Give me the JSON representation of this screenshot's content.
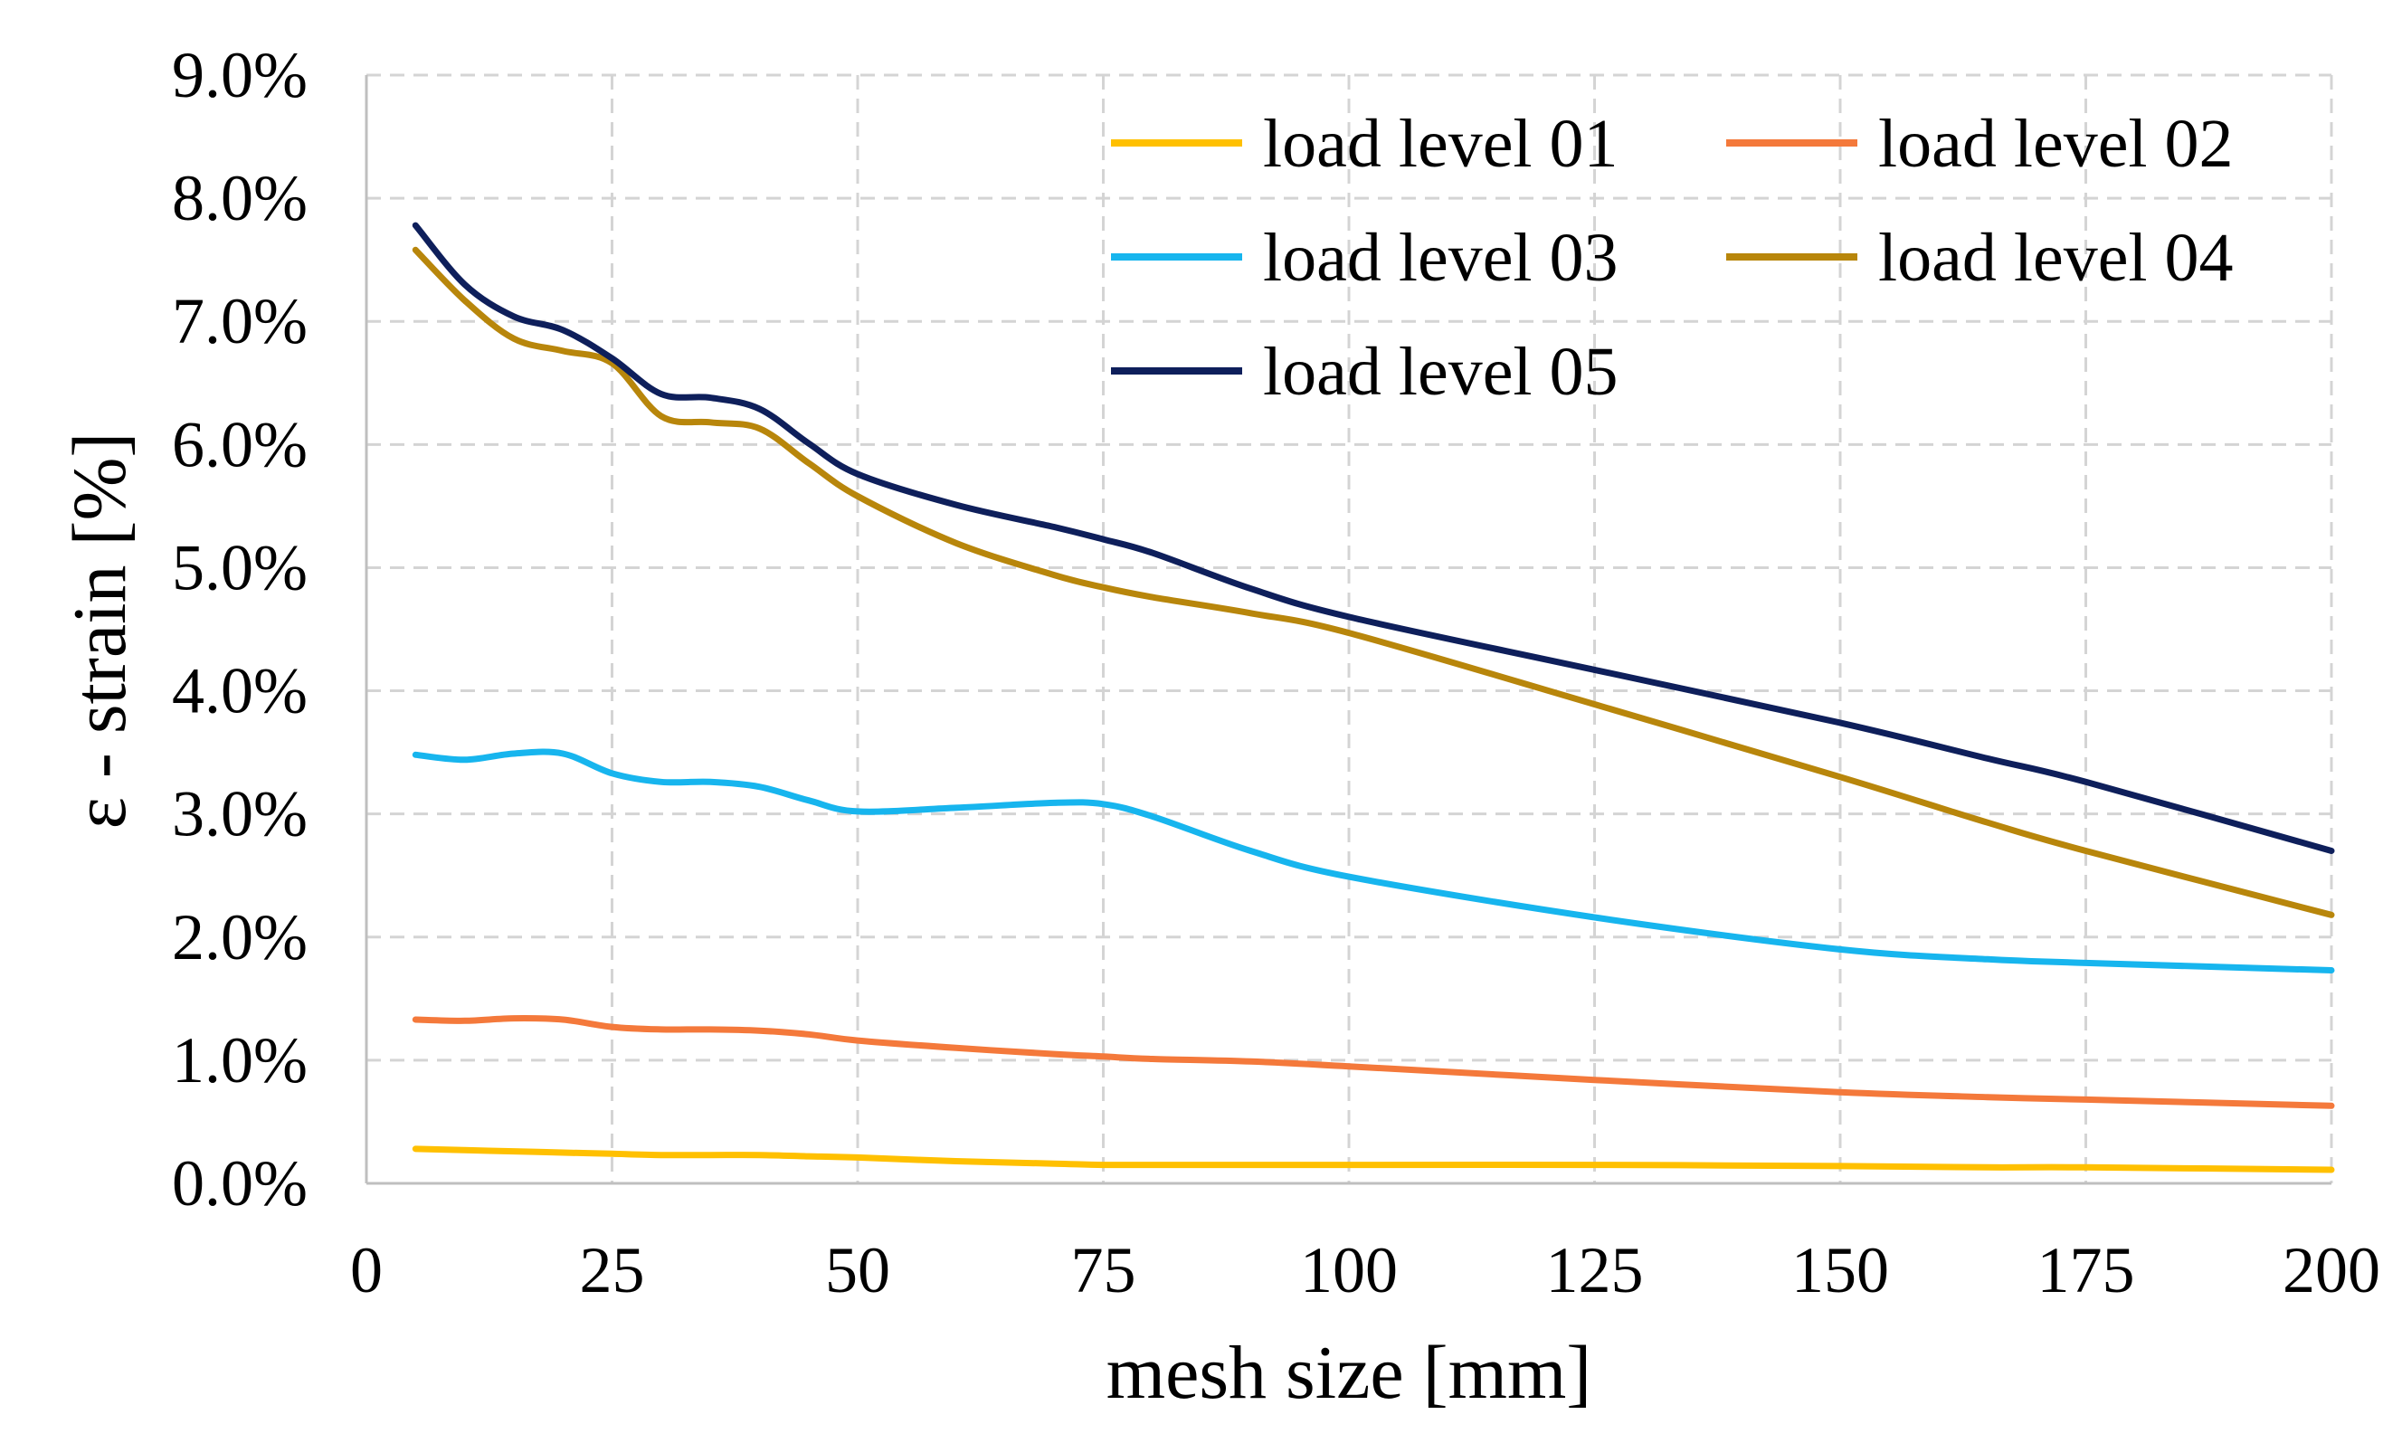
{
  "chart_data": {
    "type": "line",
    "title": "",
    "xlabel": "mesh size [mm]",
    "ylabel": "ε - strain [%]",
    "xlim": [
      0,
      200
    ],
    "ylim": [
      0,
      9
    ],
    "grid": true,
    "legend_position": "top-right",
    "x_ticks": [
      0,
      25,
      50,
      75,
      100,
      125,
      150,
      175,
      200
    ],
    "x_tick_labels": [
      "0",
      "25",
      "50",
      "75",
      "100",
      "125",
      "150",
      "175",
      "200"
    ],
    "y_ticks": [
      0,
      1,
      2,
      3,
      4,
      5,
      6,
      7,
      8,
      9
    ],
    "y_tick_labels": [
      "0.0%",
      "1.0%",
      "2.0%",
      "3.0%",
      "4.0%",
      "5.0%",
      "6.0%",
      "7.0%",
      "8.0%",
      "9.0%"
    ],
    "x": [
      5,
      10,
      15,
      20,
      25,
      30,
      35,
      40,
      45,
      50,
      60,
      70,
      75,
      80,
      90,
      100,
      125,
      150,
      165,
      175,
      200
    ],
    "series": [
      {
        "name": "load level 01",
        "color": "#FFC000",
        "values": [
          0.28,
          0.27,
          0.26,
          0.25,
          0.24,
          0.23,
          0.23,
          0.23,
          0.22,
          0.21,
          0.18,
          0.16,
          0.15,
          0.15,
          0.15,
          0.15,
          0.15,
          0.14,
          0.13,
          0.13,
          0.11
        ]
      },
      {
        "name": "load level 02",
        "color": "#F4793B",
        "values": [
          1.33,
          1.32,
          1.34,
          1.33,
          1.27,
          1.25,
          1.25,
          1.24,
          1.21,
          1.16,
          1.1,
          1.05,
          1.03,
          1.01,
          0.99,
          0.95,
          0.84,
          0.74,
          0.7,
          0.68,
          0.63
        ]
      },
      {
        "name": "load level 03",
        "color": "#17B5EE",
        "values": [
          3.48,
          3.44,
          3.49,
          3.49,
          3.33,
          3.26,
          3.26,
          3.22,
          3.11,
          3.02,
          3.05,
          3.09,
          3.08,
          2.98,
          2.7,
          2.49,
          2.16,
          1.9,
          1.82,
          1.79,
          1.73
        ]
      },
      {
        "name": "load level 04",
        "color": "#B8860B",
        "values": [
          7.58,
          7.17,
          6.86,
          6.76,
          6.66,
          6.23,
          6.18,
          6.13,
          5.85,
          5.58,
          5.2,
          4.94,
          4.84,
          4.76,
          4.63,
          4.47,
          3.89,
          3.3,
          2.93,
          2.7,
          2.18
        ]
      },
      {
        "name": "load level 05",
        "color": "#0E1F5B",
        "values": [
          7.78,
          7.3,
          7.04,
          6.93,
          6.7,
          6.41,
          6.38,
          6.29,
          6.01,
          5.76,
          5.51,
          5.33,
          5.23,
          5.12,
          4.83,
          4.6,
          4.17,
          3.74,
          3.45,
          3.26,
          2.7
        ]
      }
    ]
  }
}
